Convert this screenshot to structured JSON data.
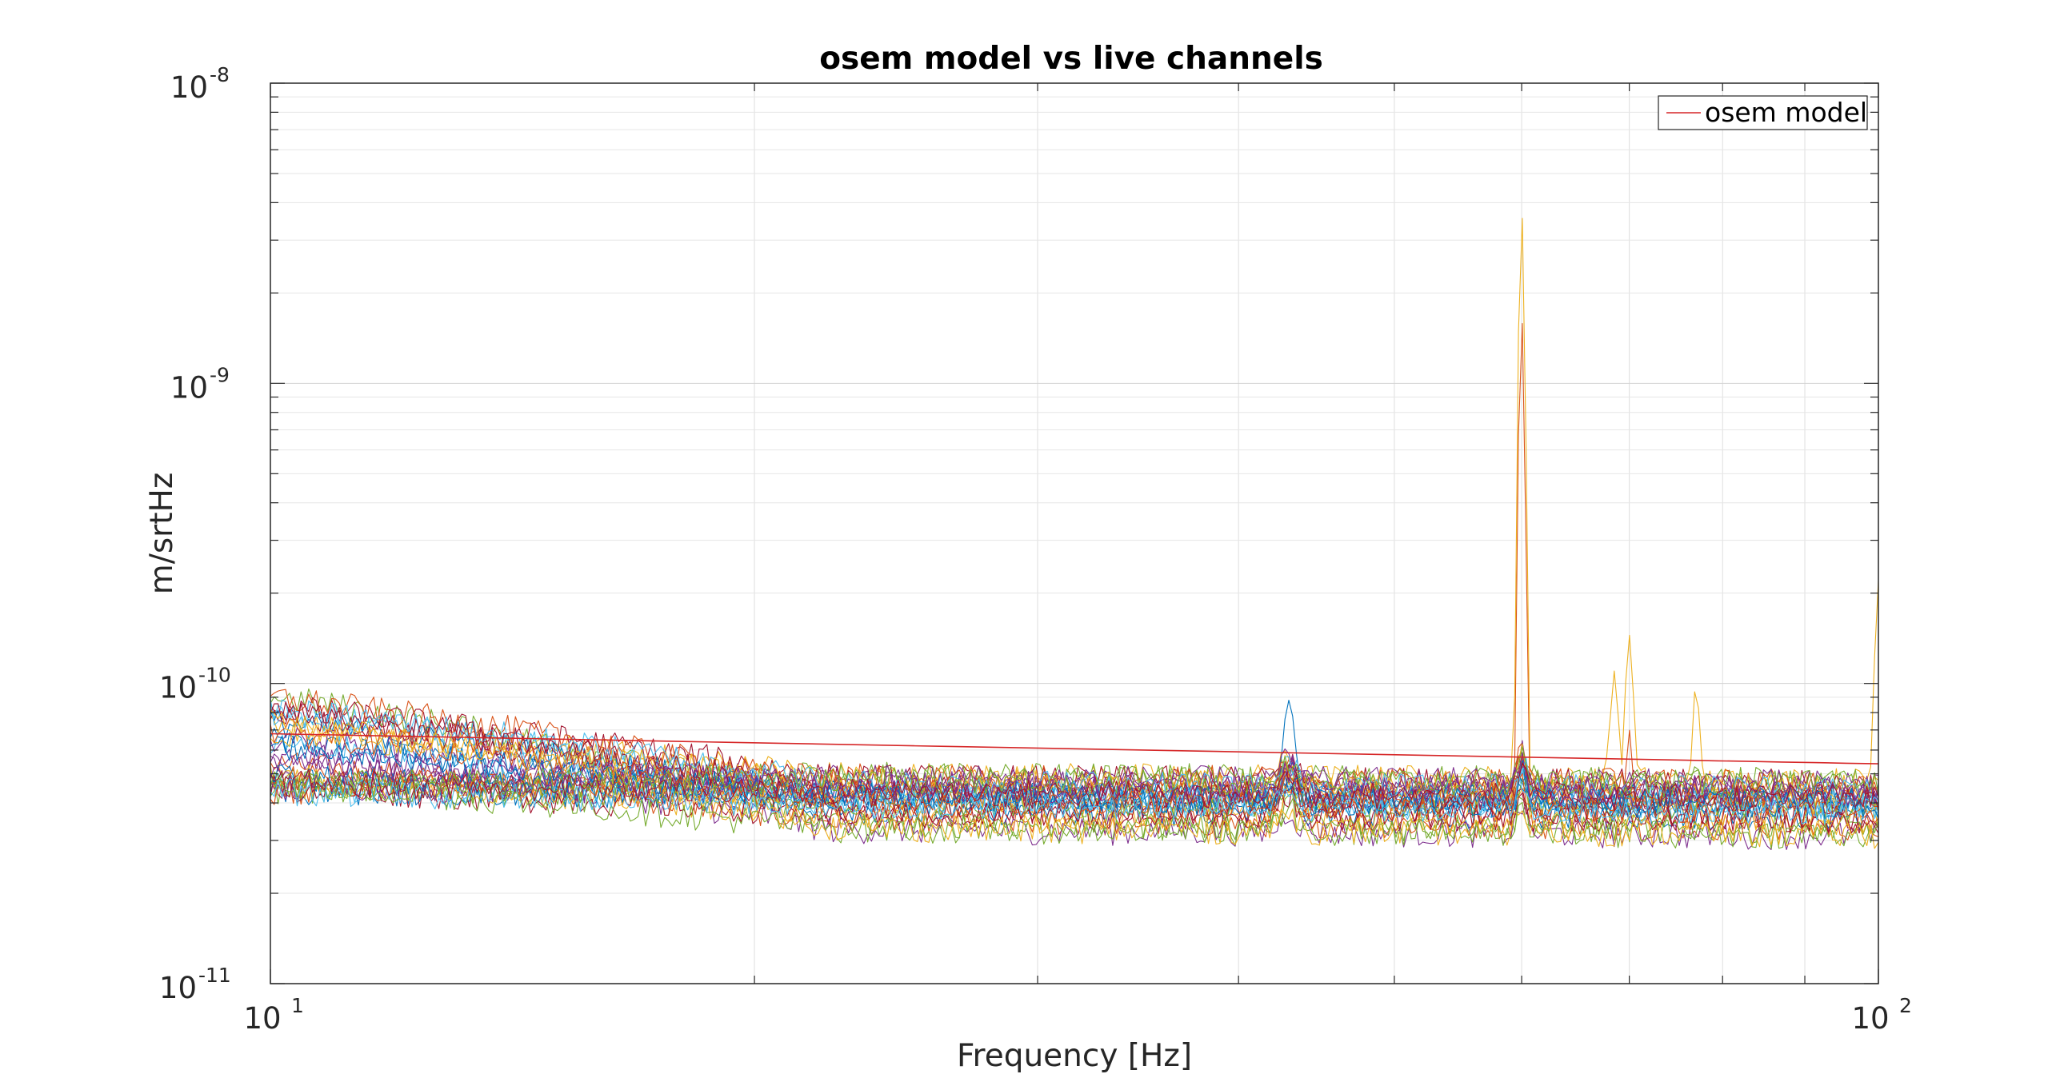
{
  "chart_data": {
    "type": "line",
    "title": "osem model vs live channels",
    "xlabel": "Frequency [Hz]",
    "ylabel": "m/srtHz",
    "xscale": "log",
    "yscale": "log",
    "xlim": [
      10,
      100
    ],
    "ylim": [
      1e-11,
      1e-08
    ],
    "grid": true,
    "legend_placement": "top-right",
    "x_ticks": [
      {
        "base": "10",
        "exp": "1",
        "value": 10
      },
      {
        "base": "10",
        "exp": "2",
        "value": 100
      }
    ],
    "y_ticks": [
      {
        "base": "10",
        "exp": "-8",
        "value": 1e-08
      },
      {
        "base": "10",
        "exp": "-9",
        "value": 1e-09
      },
      {
        "base": "10",
        "exp": "-10",
        "value": 1e-10
      },
      {
        "base": "10",
        "exp": "-11",
        "value": 1e-11
      }
    ],
    "model_series": {
      "name": "osem model",
      "color": "#d62728",
      "x": [
        10,
        100
      ],
      "y": [
        6.8e-11,
        5.4e-11
      ]
    },
    "live_channel_colors": [
      "#0072bd",
      "#d95319",
      "#edb120",
      "#7e2f8e",
      "#77ac30",
      "#4dbeee",
      "#a2142f"
    ],
    "live_channels": {
      "count": 35,
      "x_range": [
        10,
        100
      ],
      "baseline_low_freq": [
        4.4e-11,
        9.5e-11
      ],
      "baseline_high_freq": [
        3.1e-11,
        4.8e-11
      ],
      "peaks": [
        {
          "x": 43,
          "y": 8.8e-11,
          "channel_color": "#0072bd"
        },
        {
          "x": 60,
          "y": 3.7e-09,
          "channel_color": "#edb120"
        },
        {
          "x": 60,
          "y": 1.65e-09,
          "channel_color": "#d95319"
        },
        {
          "x": 68.5,
          "y": 1.1e-10,
          "channel_color": "#edb120"
        },
        {
          "x": 70,
          "y": 1.45e-10,
          "channel_color": "#edb120"
        },
        {
          "x": 70,
          "y": 7e-11,
          "channel_color": "#d95319"
        },
        {
          "x": 77,
          "y": 9.8e-11,
          "channel_color": "#edb120"
        },
        {
          "x": 100,
          "y": 2.2e-10,
          "channel_color": "#edb120"
        }
      ]
    }
  }
}
